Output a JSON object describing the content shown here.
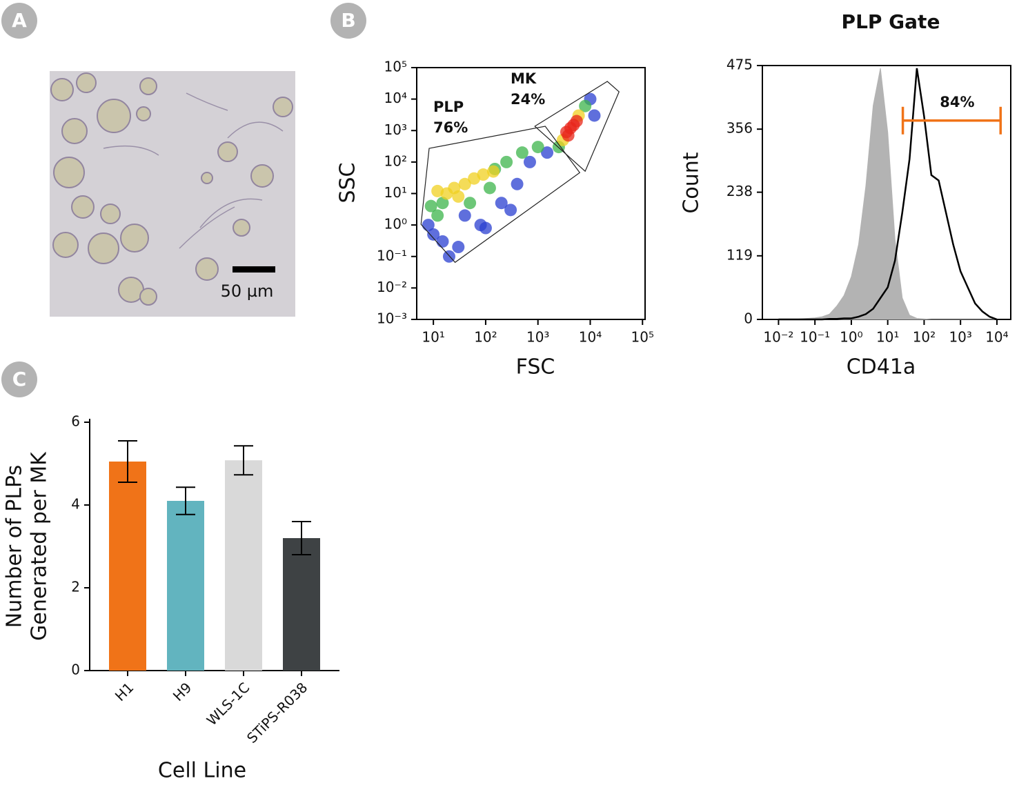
{
  "panels": [
    "A",
    "B",
    "C"
  ],
  "image": {
    "scale_bar": "50 µm"
  },
  "chart_data": [
    {
      "type": "scatter",
      "xlabel": "FSC",
      "ylabel": "SSC",
      "xscale": "log",
      "yscale": "log",
      "xlim": [
        4.8,
        112000
      ],
      "ylim": [
        0.001,
        100000
      ],
      "xticks": [
        {
          "value": 10,
          "label": "10¹"
        },
        {
          "value": 100,
          "label": "10²"
        },
        {
          "value": 1000,
          "label": "10³"
        },
        {
          "value": 10000,
          "label": "10⁴"
        },
        {
          "value": 100000,
          "label": "10⁵"
        }
      ],
      "yticks": [
        {
          "value": 0.001,
          "label": "10⁻³"
        },
        {
          "value": 0.01,
          "label": "10⁻²"
        },
        {
          "value": 0.1,
          "label": "10⁻¹"
        },
        {
          "value": 1,
          "label": "10⁰"
        },
        {
          "value": 10,
          "label": "10¹"
        },
        {
          "value": 100,
          "label": "10²"
        },
        {
          "value": 1000,
          "label": "10³"
        },
        {
          "value": 10000,
          "label": "10⁴"
        },
        {
          "value": 100000,
          "label": "10⁵"
        }
      ],
      "series": [
        {
          "color": "#2a3fd0",
          "x": [
            10,
            15,
            30,
            80,
            200,
            400,
            8,
            700,
            1500,
            10000,
            12000,
            20,
            100,
            40,
            300
          ],
          "y": [
            0.5,
            0.3,
            0.2,
            1,
            5,
            20,
            1,
            100,
            200,
            10000,
            3000,
            0.1,
            0.8,
            2,
            3
          ]
        },
        {
          "color": "#3cb44b",
          "x": [
            15,
            150,
            250,
            12,
            500,
            2500,
            8000,
            50,
            1000,
            9,
            120
          ],
          "y": [
            5,
            60,
            100,
            2,
            200,
            300,
            6000,
            5,
            300,
            4,
            15
          ]
        },
        {
          "color": "#f0d020",
          "x": [
            25,
            40,
            60,
            90,
            30,
            3000,
            6000,
            18,
            12,
            140
          ],
          "y": [
            15,
            20,
            30,
            40,
            8,
            500,
            3000,
            10,
            12,
            50
          ]
        },
        {
          "color": "#e8251a",
          "x": [
            3500,
            4200,
            4800,
            3800,
            5500
          ],
          "y": [
            900,
            1200,
            1500,
            700,
            2000
          ]
        }
      ],
      "gates": [
        {
          "name": "PLP",
          "label": "76%",
          "x": [
            8.3,
            1377,
            6300,
            26,
            5.8
          ],
          "y": [
            272,
            1368,
            46,
            0.065,
            1.05
          ]
        },
        {
          "name": "MK",
          "label": "24%",
          "x": [
            873,
            21200,
            35600,
            8000
          ],
          "y": [
            1368,
            36400,
            17100,
            51
          ]
        }
      ]
    },
    {
      "type": "line",
      "title": "PLP Gate",
      "xlabel": "CD41a",
      "ylabel": "Count",
      "xscale": "log",
      "xlim": [
        0.0036,
        24000
      ],
      "ylim": [
        0,
        475
      ],
      "xticks": [
        {
          "value": 0.01,
          "label": "10⁻²"
        },
        {
          "value": 0.1,
          "label": "10⁻¹"
        },
        {
          "value": 1,
          "label": "10⁰"
        },
        {
          "value": 10,
          "label": "10¹"
        },
        {
          "value": 100,
          "label": "10²"
        },
        {
          "value": 1000,
          "label": "10³"
        },
        {
          "value": 10000,
          "label": "10⁴"
        }
      ],
      "yticks": [
        0,
        119,
        238,
        356,
        475
      ],
      "x": [
        0.01,
        0.0158,
        0.0251,
        0.0398,
        0.0631,
        0.1,
        0.158,
        0.251,
        0.398,
        0.631,
        1,
        1.58,
        2.51,
        3.98,
        6.31,
        10,
        15.8,
        25.1,
        39.8,
        63.1,
        100,
        158,
        251,
        398,
        631,
        1000,
        1580,
        2510,
        3980,
        6310,
        10000
      ],
      "series": [
        {
          "color": "#b3b3b3",
          "style": "area",
          "values": [
            0,
            0,
            0,
            1,
            2,
            3,
            5,
            10,
            25,
            45,
            80,
            140,
            250,
            400,
            470,
            350,
            150,
            40,
            8,
            2,
            1,
            0,
            0,
            0,
            0,
            0,
            0,
            0,
            0,
            0,
            0
          ]
        },
        {
          "color": "#000000",
          "style": "line",
          "values": [
            0,
            0,
            0,
            0,
            0,
            0,
            0,
            1,
            1,
            2,
            2,
            5,
            10,
            20,
            40,
            60,
            110,
            200,
            300,
            470,
            380,
            270,
            260,
            200,
            140,
            90,
            60,
            30,
            15,
            5,
            0
          ]
        }
      ],
      "gate": {
        "label": "84%",
        "color": "#f07318",
        "x": [
          26,
          12600
        ],
        "y": 372
      }
    },
    {
      "type": "bar",
      "xlabel": "Cell Line",
      "ylabel": [
        "Number of PLPs",
        "Generated per MK"
      ],
      "categories": [
        "H1",
        "H9",
        "WLS-1C",
        "STiPS-R038"
      ],
      "values": [
        5.05,
        4.1,
        5.08,
        3.2
      ],
      "errors": [
        0.5,
        0.33,
        0.35,
        0.4
      ],
      "colors": [
        "#f07318",
        "#62b4bf",
        "#d9d9d9",
        "#3e4244"
      ],
      "ylim": [
        0,
        6
      ],
      "yticks": [
        0,
        2,
        4,
        6
      ]
    }
  ]
}
